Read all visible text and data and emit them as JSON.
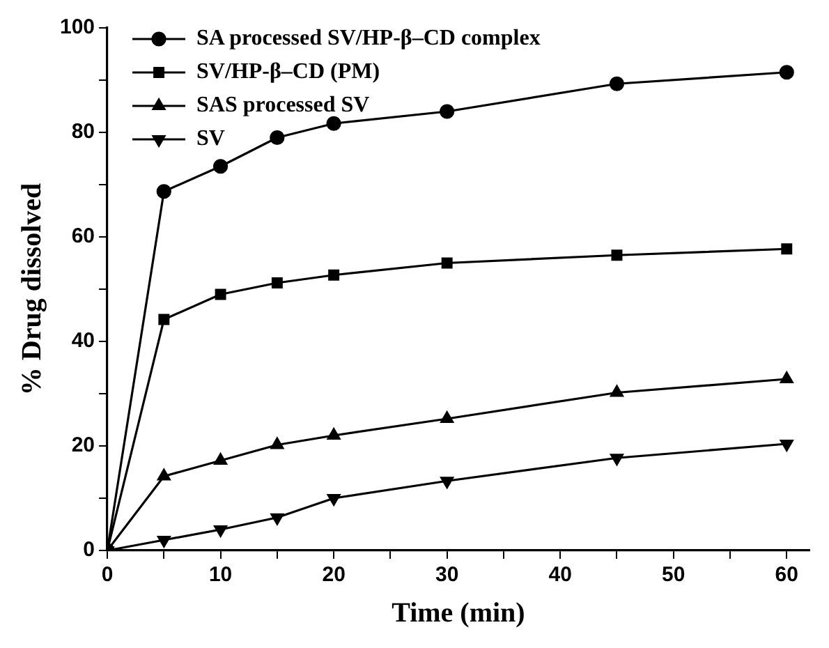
{
  "chart_data": {
    "type": "line",
    "xlabel": "Time (min)",
    "ylabel": "% Drug dissolved",
    "x": [
      0,
      5,
      10,
      15,
      20,
      30,
      45,
      60
    ],
    "series": [
      {
        "name": "SA processed SV/HP-β–CD complex",
        "color": "#000000",
        "marker": "circle",
        "values": [
          0,
          68.7,
          73.5,
          79,
          81.7,
          84,
          89.3,
          91.5
        ]
      },
      {
        "name": "SV/HP-β–CD (PM)",
        "color": "#000000",
        "marker": "square",
        "values": [
          0,
          44.2,
          49,
          51.2,
          52.7,
          55,
          56.5,
          57.7
        ]
      },
      {
        "name": "SAS processed SV",
        "color": "#000000",
        "marker": "triangle",
        "values": [
          0,
          14.2,
          17.2,
          20.2,
          22,
          25.2,
          30.2,
          32.8
        ]
      },
      {
        "name": "SV",
        "color": "#000000",
        "marker": "triangle-down",
        "values": [
          0,
          2,
          4,
          6.3,
          10,
          13.3,
          17.7,
          20.4
        ]
      }
    ],
    "xlim": [
      0,
      62
    ],
    "xticks": [
      0,
      {
        "value": 5,
        "label": null
      },
      10,
      {
        "value": 15,
        "label": null
      },
      20,
      {
        "value": 25,
        "label": null
      },
      30,
      {
        "value": 35,
        "label": null
      },
      40,
      {
        "value": 45,
        "label": null
      },
      50,
      {
        "value": 55,
        "label": null
      },
      60
    ],
    "ylim": [
      0,
      100
    ],
    "yticks": [
      0,
      {
        "value": 10,
        "label": null
      },
      20,
      {
        "value": 30,
        "label": null
      },
      40,
      {
        "value": 50,
        "label": null
      },
      60,
      {
        "value": 70,
        "label": null
      },
      80,
      {
        "value": 90,
        "label": null
      },
      100
    ],
    "legend": "top left",
    "grid": false,
    "line_style": "solid"
  }
}
